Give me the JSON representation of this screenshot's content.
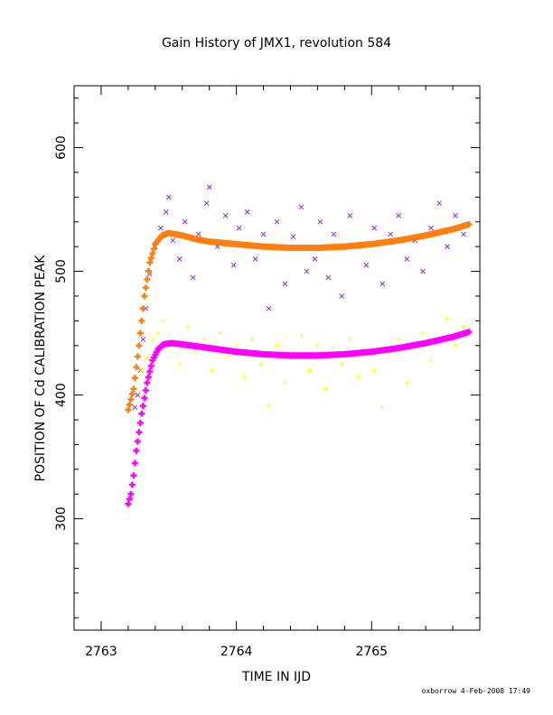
{
  "page": {
    "footer": "oxborrow  4-Feb-2008 17:49"
  },
  "chart_data": {
    "type": "scatter",
    "title": "Gain History of JMX1, revolution 584",
    "xlabel": "TIME IN IJD",
    "ylabel": "POSITION OF Cd CALIBRATION PEAK",
    "xlim": [
      2762.8,
      2765.8
    ],
    "ylim": [
      210,
      650
    ],
    "xticks": [
      2763,
      2764,
      2765
    ],
    "yticks": [
      300,
      400,
      500,
      600
    ],
    "grid": false,
    "colors": {
      "purple_points": "#8a2be2",
      "yellow_points": "#ffff00",
      "orange_fit": "#ff7f0e",
      "magenta_fit": "#ff00ff"
    },
    "series": [
      {
        "kind": "scatter",
        "marker": "x",
        "colorKey": "purple_points",
        "points": [
          [
            2763.25,
            390
          ],
          [
            2763.27,
            400
          ],
          [
            2763.29,
            420
          ],
          [
            2763.31,
            445
          ],
          [
            2763.33,
            470
          ],
          [
            2763.36,
            498
          ],
          [
            2763.4,
            520
          ],
          [
            2763.44,
            535
          ],
          [
            2763.48,
            548
          ],
          [
            2763.5,
            560
          ],
          [
            2763.53,
            525
          ],
          [
            2763.58,
            510
          ],
          [
            2763.62,
            540
          ],
          [
            2763.68,
            495
          ],
          [
            2763.72,
            530
          ],
          [
            2763.78,
            555
          ],
          [
            2763.8,
            568
          ],
          [
            2763.86,
            520
          ],
          [
            2763.92,
            545
          ],
          [
            2763.98,
            505
          ],
          [
            2764.02,
            535
          ],
          [
            2764.08,
            548
          ],
          [
            2764.14,
            510
          ],
          [
            2764.2,
            530
          ],
          [
            2764.24,
            470
          ],
          [
            2764.3,
            540
          ],
          [
            2764.36,
            490
          ],
          [
            2764.42,
            528
          ],
          [
            2764.48,
            552
          ],
          [
            2764.52,
            500
          ],
          [
            2764.58,
            510
          ],
          [
            2764.62,
            540
          ],
          [
            2764.68,
            495
          ],
          [
            2764.72,
            530
          ],
          [
            2764.78,
            480
          ],
          [
            2764.84,
            545
          ],
          [
            2764.9,
            520
          ],
          [
            2764.96,
            505
          ],
          [
            2765.02,
            535
          ],
          [
            2765.08,
            490
          ],
          [
            2765.14,
            530
          ],
          [
            2765.2,
            545
          ],
          [
            2765.26,
            510
          ],
          [
            2765.32,
            525
          ],
          [
            2765.38,
            500
          ],
          [
            2765.44,
            535
          ],
          [
            2765.5,
            555
          ],
          [
            2765.56,
            520
          ],
          [
            2765.62,
            545
          ],
          [
            2765.68,
            530
          ]
        ]
      },
      {
        "kind": "scatter",
        "marker": "+",
        "colorKey": "yellow_points",
        "points": [
          [
            2763.3,
            420
          ],
          [
            2763.34,
            430
          ],
          [
            2763.38,
            445
          ],
          [
            2763.42,
            450
          ],
          [
            2763.46,
            460
          ],
          [
            2763.52,
            440
          ],
          [
            2763.58,
            425
          ],
          [
            2763.64,
            455
          ],
          [
            2763.7,
            435
          ],
          [
            2763.76,
            445
          ],
          [
            2763.82,
            420
          ],
          [
            2763.88,
            450
          ],
          [
            2763.94,
            432
          ],
          [
            2764.0,
            440
          ],
          [
            2764.06,
            415
          ],
          [
            2764.12,
            445
          ],
          [
            2764.18,
            425
          ],
          [
            2764.24,
            392
          ],
          [
            2764.3,
            440
          ],
          [
            2764.36,
            410
          ],
          [
            2764.42,
            435
          ],
          [
            2764.48,
            448
          ],
          [
            2764.54,
            420
          ],
          [
            2764.6,
            440
          ],
          [
            2764.66,
            405
          ],
          [
            2764.72,
            438
          ],
          [
            2764.78,
            425
          ],
          [
            2764.84,
            445
          ],
          [
            2764.9,
            415
          ],
          [
            2764.96,
            437
          ],
          [
            2765.02,
            420
          ],
          [
            2765.08,
            390
          ],
          [
            2765.14,
            435
          ],
          [
            2765.2,
            445
          ],
          [
            2765.26,
            410
          ],
          [
            2765.32,
            440
          ],
          [
            2765.38,
            450
          ],
          [
            2765.44,
            428
          ],
          [
            2765.5,
            445
          ],
          [
            2765.56,
            462
          ],
          [
            2765.62,
            440
          ],
          [
            2765.68,
            455
          ]
        ]
      },
      {
        "kind": "fit",
        "marker": "+",
        "colorKey": "orange_fit",
        "points": [
          [
            2763.2,
            388
          ],
          [
            2763.24,
            405
          ],
          [
            2763.28,
            440
          ],
          [
            2763.32,
            480
          ],
          [
            2763.36,
            507
          ],
          [
            2763.4,
            522
          ],
          [
            2763.45,
            529
          ],
          [
            2763.5,
            531
          ],
          [
            2763.6,
            529
          ],
          [
            2763.7,
            526
          ],
          [
            2763.8,
            524
          ],
          [
            2764.0,
            522
          ],
          [
            2764.2,
            520
          ],
          [
            2764.4,
            519
          ],
          [
            2764.6,
            519
          ],
          [
            2764.8,
            520
          ],
          [
            2765.0,
            522
          ],
          [
            2765.2,
            525
          ],
          [
            2765.4,
            529
          ],
          [
            2765.6,
            534
          ],
          [
            2765.72,
            538
          ]
        ]
      },
      {
        "kind": "fit",
        "marker": "+",
        "colorKey": "magenta_fit",
        "points": [
          [
            2763.2,
            312
          ],
          [
            2763.22,
            320
          ],
          [
            2763.24,
            335
          ],
          [
            2763.26,
            355
          ],
          [
            2763.3,
            385
          ],
          [
            2763.34,
            410
          ],
          [
            2763.38,
            428
          ],
          [
            2763.42,
            437
          ],
          [
            2763.46,
            441
          ],
          [
            2763.52,
            442
          ],
          [
            2763.6,
            441
          ],
          [
            2763.8,
            438
          ],
          [
            2764.0,
            435
          ],
          [
            2764.2,
            433
          ],
          [
            2764.4,
            432
          ],
          [
            2764.6,
            432
          ],
          [
            2764.8,
            433
          ],
          [
            2765.0,
            435
          ],
          [
            2765.2,
            438
          ],
          [
            2765.4,
            442
          ],
          [
            2765.6,
            447
          ],
          [
            2765.72,
            451
          ]
        ]
      }
    ]
  }
}
